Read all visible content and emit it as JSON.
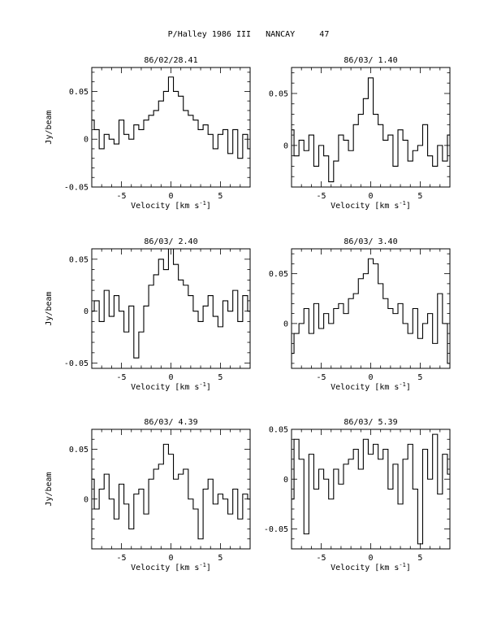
{
  "page_title": "P/Halley 1986 III   NANCAY     47",
  "chart_data": [
    {
      "type": "line",
      "title": "86/02/28.41",
      "xlabel": "Velocity [km s",
      "xlabel_sup": "-1",
      "xlabel_end": "]",
      "ylabel": "Jy/beam",
      "xlim": [
        -8,
        8
      ],
      "ylim": [
        -0.05,
        0.075
      ],
      "xticks": [
        -5,
        0,
        5
      ],
      "yticks": [
        -0.05,
        0,
        0.05
      ],
      "ytick_labels": [
        "-0.05",
        "0",
        "0.05"
      ],
      "series": [
        {
          "x": [
            -8,
            -7.5,
            -7,
            -6.5,
            -6,
            -5.5,
            -5,
            -4.5,
            -4,
            -3.5,
            -3,
            -2.5,
            -2,
            -1.5,
            -1,
            -0.5,
            0,
            0.5,
            1,
            1.5,
            2,
            2.5,
            3,
            3.5,
            4,
            4.5,
            5,
            5.5,
            6,
            6.5,
            7,
            7.5,
            8
          ],
          "y": [
            0.02,
            0.01,
            -0.01,
            0.005,
            0.0,
            -0.005,
            0.02,
            0.005,
            0.0,
            0.015,
            0.01,
            0.02,
            0.025,
            0.03,
            0.04,
            0.05,
            0.065,
            0.05,
            0.045,
            0.03,
            0.025,
            0.02,
            0.01,
            0.015,
            0.005,
            -0.01,
            0.005,
            0.01,
            -0.015,
            0.01,
            -0.02,
            0.005,
            -0.01
          ]
        }
      ]
    },
    {
      "type": "line",
      "title": "86/03/ 1.40",
      "xlabel": "Velocity [km s",
      "xlabel_sup": "-1",
      "xlabel_end": "]",
      "ylabel": "",
      "xlim": [
        -8,
        8
      ],
      "ylim": [
        -0.04,
        0.075
      ],
      "xticks": [
        -5,
        0,
        5
      ],
      "yticks": [
        0,
        0.05
      ],
      "ytick_labels": [
        "0",
        "0.05"
      ],
      "series": [
        {
          "x": [
            -8,
            -7.5,
            -7,
            -6.5,
            -6,
            -5.5,
            -5,
            -4.5,
            -4,
            -3.5,
            -3,
            -2.5,
            -2,
            -1.5,
            -1,
            -0.5,
            0,
            0.5,
            1,
            1.5,
            2,
            2.5,
            3,
            3.5,
            4,
            4.5,
            5,
            5.5,
            6,
            6.5,
            7,
            7.5,
            8
          ],
          "y": [
            0.015,
            -0.01,
            0.005,
            -0.005,
            0.01,
            -0.02,
            0.0,
            -0.01,
            -0.035,
            -0.015,
            0.01,
            0.005,
            -0.005,
            0.02,
            0.03,
            0.045,
            0.065,
            0.03,
            0.02,
            0.005,
            0.01,
            -0.02,
            0.015,
            0.005,
            -0.015,
            -0.005,
            0.0,
            0.02,
            -0.01,
            -0.02,
            0.0,
            -0.015,
            0.01
          ]
        }
      ]
    },
    {
      "type": "line",
      "title": "86/03/ 2.40",
      "xlabel": "Velocity [km s",
      "xlabel_sup": "-1",
      "xlabel_end": "]",
      "ylabel": "Jy/beam",
      "xlim": [
        -8,
        8
      ],
      "ylim": [
        -0.055,
        0.06
      ],
      "xticks": [
        -5,
        0,
        5
      ],
      "yticks": [
        -0.05,
        0,
        0.05
      ],
      "ytick_labels": [
        "-0.05",
        "0",
        "0.05"
      ],
      "series": [
        {
          "x": [
            -8,
            -7.5,
            -7,
            -6.5,
            -6,
            -5.5,
            -5,
            -4.5,
            -4,
            -3.5,
            -3,
            -2.5,
            -2,
            -1.5,
            -1,
            -0.5,
            0,
            0.5,
            1,
            1.5,
            2,
            2.5,
            3,
            3.5,
            4,
            4.5,
            5,
            5.5,
            6,
            6.5,
            7,
            7.5,
            8
          ],
          "y": [
            0.0,
            0.01,
            -0.01,
            0.02,
            -0.005,
            0.015,
            0.0,
            -0.02,
            0.005,
            -0.045,
            -0.02,
            0.005,
            0.025,
            0.035,
            0.05,
            0.04,
            0.06,
            0.045,
            0.03,
            0.025,
            0.015,
            0.0,
            -0.01,
            0.005,
            0.015,
            -0.005,
            -0.015,
            0.01,
            0.0,
            0.02,
            -0.01,
            0.015,
            0.0
          ]
        }
      ]
    },
    {
      "type": "line",
      "title": "86/03/ 3.40",
      "xlabel": "Velocity [km s",
      "xlabel_sup": "-1",
      "xlabel_end": "]",
      "ylabel": "",
      "xlim": [
        -8,
        8
      ],
      "ylim": [
        -0.045,
        0.075
      ],
      "xticks": [
        -5,
        0,
        5
      ],
      "yticks": [
        0,
        0.05
      ],
      "ytick_labels": [
        "0",
        "0.05"
      ],
      "series": [
        {
          "x": [
            -8,
            -7.5,
            -7,
            -6.5,
            -6,
            -5.5,
            -5,
            -4.5,
            -4,
            -3.5,
            -3,
            -2.5,
            -2,
            -1.5,
            -1,
            -0.5,
            0,
            0.5,
            1,
            1.5,
            2,
            2.5,
            3,
            3.5,
            4,
            4.5,
            5,
            5.5,
            6,
            6.5,
            7,
            7.5,
            8
          ],
          "y": [
            -0.03,
            -0.01,
            0.0,
            0.015,
            -0.01,
            0.02,
            -0.005,
            0.01,
            0.0,
            0.015,
            0.02,
            0.01,
            0.025,
            0.03,
            0.045,
            0.05,
            0.065,
            0.06,
            0.04,
            0.025,
            0.015,
            0.01,
            0.02,
            0.0,
            -0.01,
            0.015,
            -0.015,
            0.0,
            0.01,
            -0.02,
            0.03,
            0.0,
            -0.04
          ]
        }
      ]
    },
    {
      "type": "line",
      "title": "86/03/ 4.39",
      "xlabel": "Velocity [km s",
      "xlabel_sup": "-1",
      "xlabel_end": "]",
      "ylabel": "Jy/beam",
      "xlim": [
        -8,
        8
      ],
      "ylim": [
        -0.05,
        0.07
      ],
      "xticks": [
        -5,
        0,
        5
      ],
      "yticks": [
        0,
        0.05
      ],
      "ytick_labels": [
        "0",
        "0.05"
      ],
      "series": [
        {
          "x": [
            -8,
            -7.5,
            -7,
            -6.5,
            -6,
            -5.5,
            -5,
            -4.5,
            -4,
            -3.5,
            -3,
            -2.5,
            -2,
            -1.5,
            -1,
            -0.5,
            0,
            0.5,
            1,
            1.5,
            2,
            2.5,
            3,
            3.5,
            4,
            4.5,
            5,
            5.5,
            6,
            6.5,
            7,
            7.5,
            8
          ],
          "y": [
            0.02,
            -0.01,
            0.01,
            0.025,
            0.0,
            -0.02,
            0.015,
            -0.005,
            -0.03,
            0.005,
            0.01,
            -0.015,
            0.02,
            0.03,
            0.035,
            0.055,
            0.045,
            0.02,
            0.025,
            0.03,
            0.0,
            -0.01,
            -0.04,
            0.01,
            0.02,
            -0.005,
            0.005,
            0.0,
            -0.015,
            0.01,
            -0.02,
            0.005,
            0.0
          ]
        }
      ]
    },
    {
      "type": "line",
      "title": "86/03/ 5.39",
      "xlabel": "Velocity [km s",
      "xlabel_sup": "-1",
      "xlabel_end": "]",
      "ylabel": "",
      "xlim": [
        -8,
        8
      ],
      "ylim": [
        -0.07,
        0.05
      ],
      "xticks": [
        -5,
        0,
        5
      ],
      "yticks": [
        -0.05,
        0,
        0.05
      ],
      "ytick_labels": [
        "-0.05",
        "0",
        "0.05"
      ],
      "series": [
        {
          "x": [
            -8,
            -7.5,
            -7,
            -6.5,
            -6,
            -5.5,
            -5,
            -4.5,
            -4,
            -3.5,
            -3,
            -2.5,
            -2,
            -1.5,
            -1,
            -0.5,
            0,
            0.5,
            1,
            1.5,
            2,
            2.5,
            3,
            3.5,
            4,
            4.5,
            5,
            5.5,
            6,
            6.5,
            7,
            7.5,
            8
          ],
          "y": [
            -0.02,
            0.04,
            0.02,
            -0.055,
            0.025,
            -0.01,
            0.01,
            0.0,
            -0.02,
            0.01,
            -0.005,
            0.015,
            0.02,
            0.03,
            0.01,
            0.04,
            0.025,
            0.035,
            0.02,
            0.03,
            -0.01,
            0.015,
            -0.025,
            0.02,
            0.035,
            -0.01,
            -0.065,
            0.03,
            0.0,
            0.045,
            -0.015,
            0.025,
            0.005
          ]
        }
      ]
    }
  ]
}
